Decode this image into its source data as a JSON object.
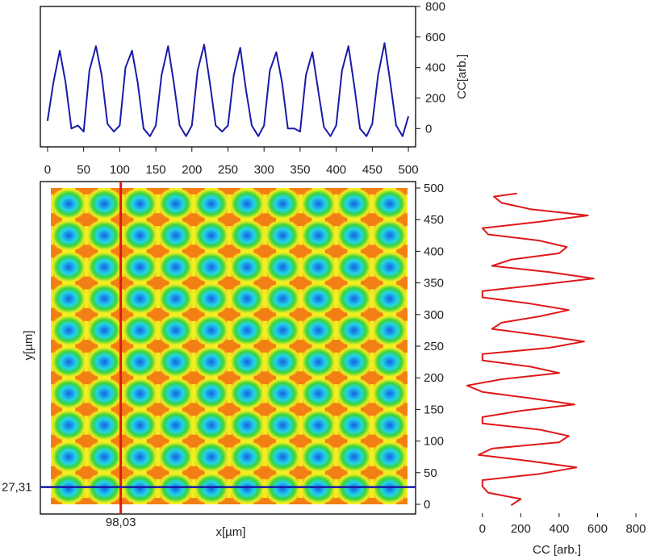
{
  "colors": {
    "top_series": "#1a1aa8",
    "right_series": "#e01818",
    "crosshair_vertical": "#e01818",
    "crosshair_horizontal": "#1a1aa8",
    "map_low": "#1560e6",
    "map_mid_low": "#22d4e6",
    "map_mid": "#3ad33a",
    "map_mid_high": "#f2ee22",
    "map_high": "#f05a10"
  },
  "markers": {
    "x_value_label": "98,03",
    "y_value_label": "27,31"
  },
  "chart_data": [
    {
      "type": "line",
      "panel": "top-profile",
      "xlabel": "",
      "ylabel": "CC[arb.]",
      "xlim": [
        -10,
        510
      ],
      "ylim": [
        -120,
        800
      ],
      "xticks": [
        "0",
        "50",
        "100",
        "150",
        "200",
        "250",
        "300",
        "350",
        "400",
        "450",
        "500"
      ],
      "yticks": [
        "0",
        "200",
        "400",
        "600",
        "800"
      ],
      "series": [
        {
          "x": [
            0,
            8,
            17,
            25,
            33,
            42,
            50,
            58,
            67,
            75,
            83,
            92,
            100,
            108,
            117,
            125,
            133,
            142,
            150,
            158,
            167,
            175,
            183,
            192,
            200,
            208,
            217,
            225,
            233,
            242,
            250,
            258,
            267,
            275,
            283,
            292,
            300,
            308,
            317,
            325,
            333,
            342,
            350,
            358,
            367,
            375,
            383,
            392,
            400,
            408,
            417,
            425,
            433,
            442,
            450,
            458,
            467,
            475,
            483,
            492,
            500
          ],
          "y": [
            50,
            300,
            510,
            300,
            0,
            20,
            -20,
            380,
            540,
            350,
            30,
            -20,
            20,
            400,
            510,
            300,
            0,
            -50,
            20,
            350,
            540,
            300,
            20,
            -50,
            20,
            380,
            550,
            300,
            20,
            -20,
            20,
            350,
            530,
            250,
            20,
            -50,
            20,
            380,
            500,
            300,
            0,
            0,
            -20,
            350,
            500,
            250,
            10,
            -50,
            20,
            380,
            540,
            280,
            0,
            -50,
            30,
            350,
            560,
            300,
            20,
            -50,
            80
          ]
        }
      ]
    },
    {
      "type": "heatmap",
      "panel": "map",
      "xlabel": "x[µm]",
      "ylabel": "y[µm]",
      "xlim": [
        0,
        500
      ],
      "ylim": [
        0,
        500
      ],
      "yticks": [
        "0",
        "50",
        "100",
        "150",
        "200",
        "250",
        "300",
        "350",
        "400",
        "450",
        "500"
      ],
      "grid_cols": 10,
      "grid_rows": 10,
      "cell_period_um": 50,
      "crosshair": {
        "x": 98.03,
        "y": 27.31
      },
      "colorscale": [
        "#1560e6",
        "#22d4e6",
        "#3ad33a",
        "#f2ee22",
        "#f05a10"
      ]
    },
    {
      "type": "line",
      "panel": "right-profile",
      "xlabel": "CC [arb.]",
      "ylabel": "",
      "xlim": [
        -100,
        800
      ],
      "ylim": [
        -10,
        510
      ],
      "xticks": [
        "0",
        "200",
        "400",
        "600",
        "800"
      ],
      "series": [
        {
          "y": [
            0,
            10,
            20,
            30,
            40,
            50,
            60,
            70,
            80,
            90,
            100,
            110,
            120,
            130,
            140,
            150,
            160,
            170,
            180,
            190,
            200,
            210,
            220,
            230,
            240,
            250,
            260,
            270,
            280,
            290,
            300,
            310,
            320,
            330,
            340,
            350,
            360,
            370,
            380,
            390,
            400,
            410,
            420,
            430,
            440,
            450,
            460,
            470,
            480,
            490,
            495
          ],
          "x": [
            150,
            200,
            30,
            0,
            0,
            300,
            490,
            250,
            -20,
            50,
            400,
            450,
            300,
            0,
            0,
            200,
            480,
            250,
            0,
            -80,
            100,
            400,
            250,
            0,
            0,
            350,
            530,
            300,
            50,
            100,
            300,
            450,
            250,
            0,
            0,
            300,
            580,
            350,
            50,
            150,
            400,
            440,
            300,
            30,
            0,
            300,
            550,
            250,
            100,
            60,
            180
          ]
        }
      ]
    }
  ]
}
